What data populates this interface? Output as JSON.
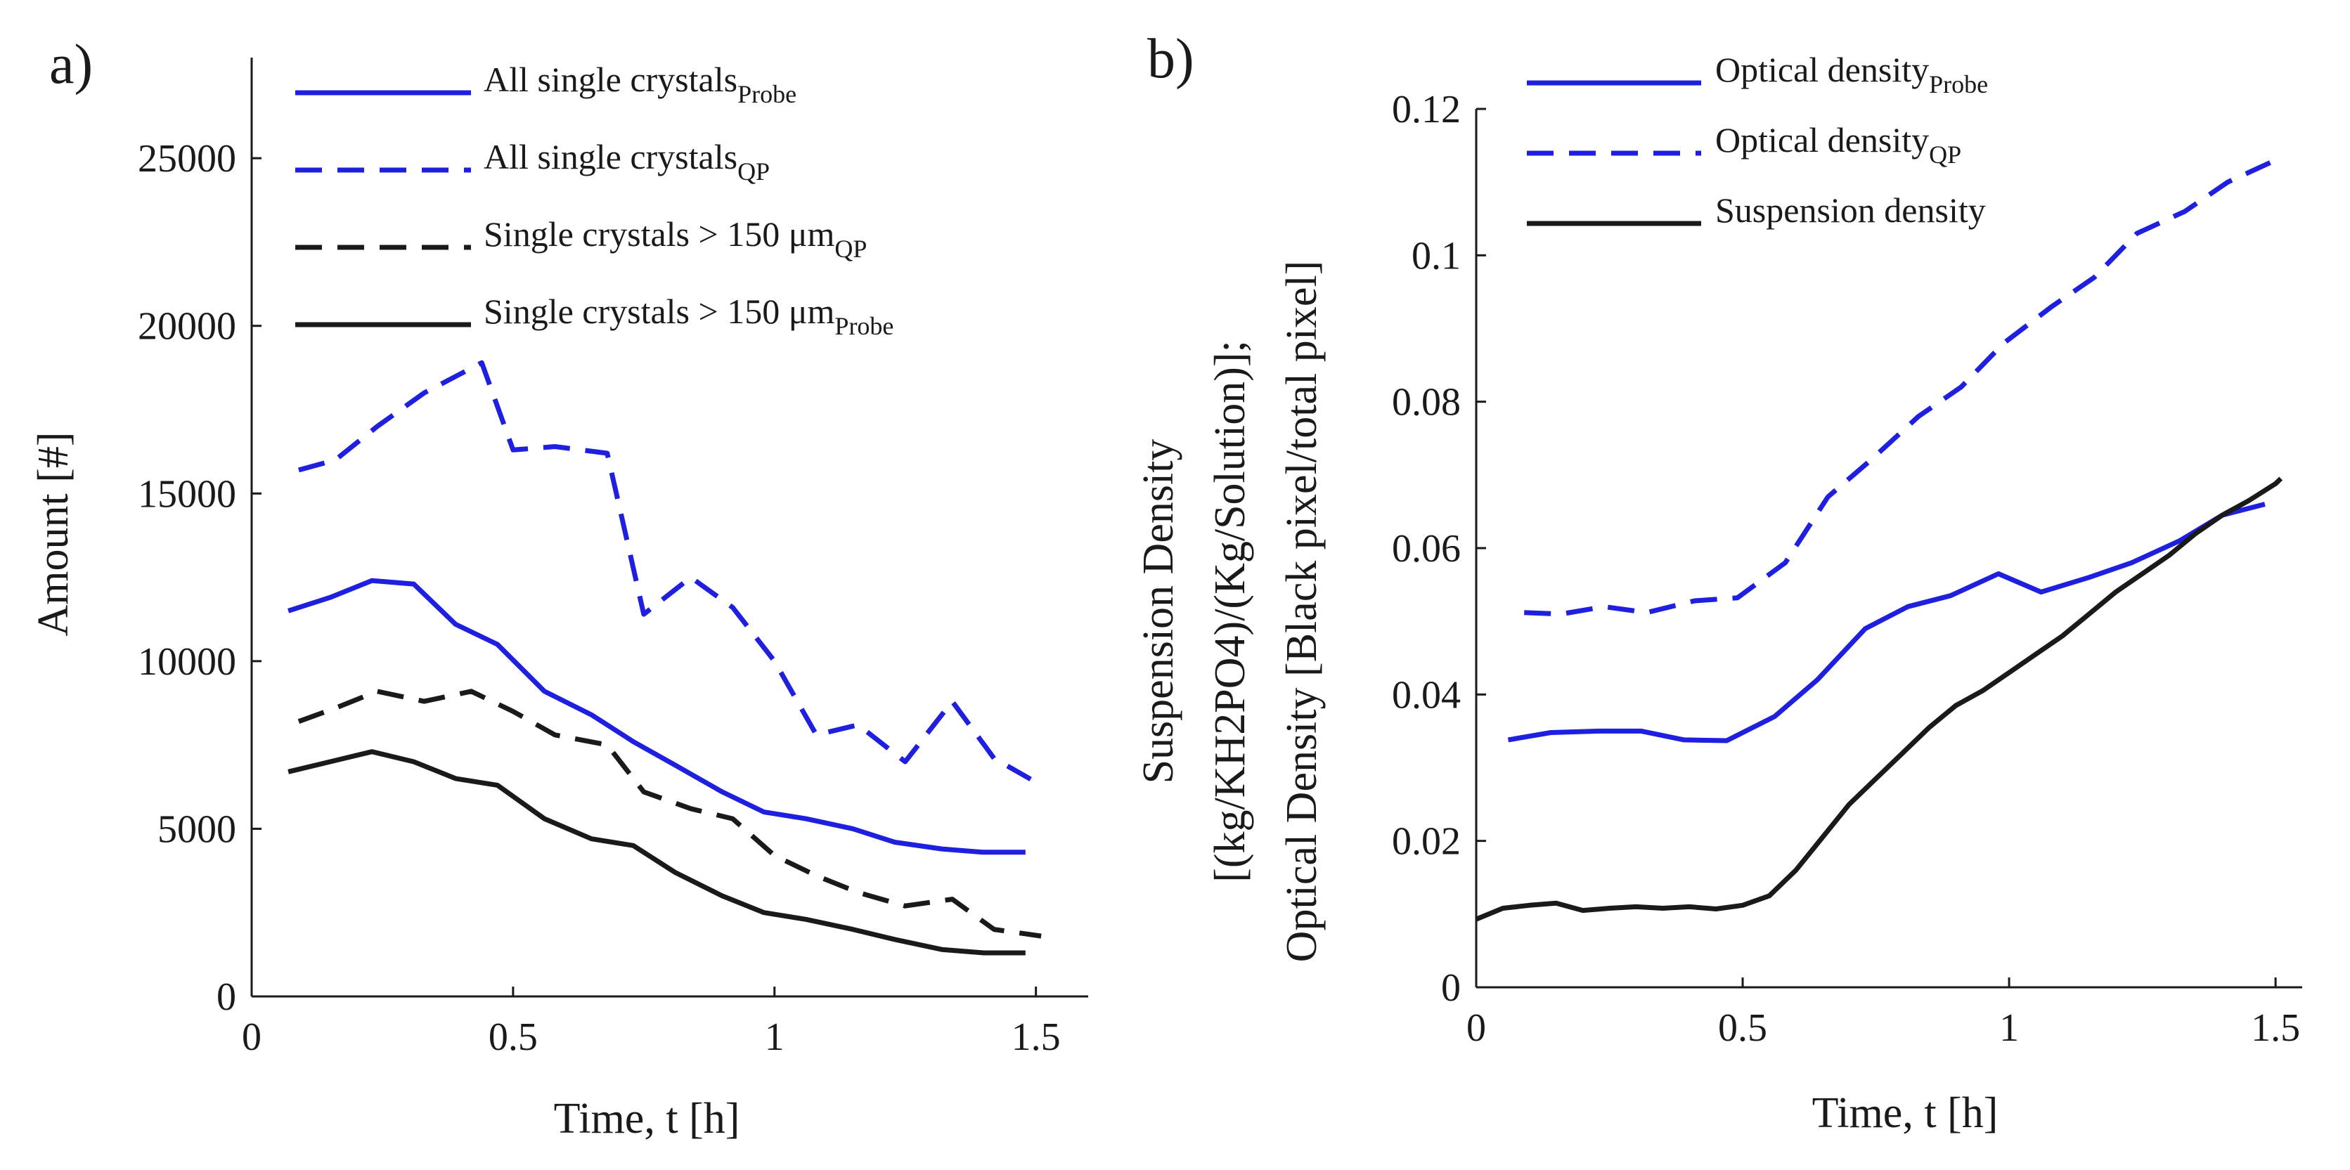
{
  "chart_data": [
    {
      "panel_label": "a)",
      "type": "line",
      "xlabel": "Time, t [h]",
      "ylabel": "Amount [#]",
      "xlim": [
        0,
        1.6
      ],
      "ylim": [
        0,
        28000
      ],
      "xticks": [
        0,
        0.5,
        1,
        1.5
      ],
      "xtick_labels": [
        "0",
        "0.5",
        "1",
        "1.5"
      ],
      "yticks": [
        0,
        5000,
        10000,
        15000,
        20000,
        25000
      ],
      "ytick_labels": [
        "0",
        "5000",
        "10000",
        "15000",
        "20000",
        "25000"
      ],
      "legend_position": "top",
      "series": [
        {
          "name": "All single crystals",
          "label": "All single crystals",
          "subscript": "Probe",
          "color": "#1f1fe0",
          "style": "solid",
          "x": [
            0.07,
            0.15,
            0.23,
            0.31,
            0.39,
            0.47,
            0.56,
            0.65,
            0.73,
            0.81,
            0.9,
            0.98,
            1.06,
            1.15,
            1.23,
            1.32,
            1.4,
            1.48
          ],
          "y": [
            11500,
            11900,
            12400,
            12300,
            11100,
            10500,
            9100,
            8400,
            7600,
            6900,
            6100,
            5500,
            5300,
            5000,
            4600,
            4400,
            4300,
            4300
          ]
        },
        {
          "name": "All single crystals",
          "label": "All single crystals",
          "subscript": "QP",
          "color": "#1f1fe0",
          "style": "dashed",
          "x": [
            0.09,
            0.16,
            0.24,
            0.33,
            0.44,
            0.5,
            0.58,
            0.68,
            0.75,
            0.84,
            0.92,
            1.0,
            1.08,
            1.16,
            1.25,
            1.34,
            1.42,
            1.51
          ],
          "y": [
            15700,
            16000,
            17000,
            18000,
            18900,
            16300,
            16400,
            16200,
            11400,
            12500,
            11600,
            10000,
            7800,
            8100,
            7000,
            8800,
            7100,
            6300
          ]
        },
        {
          "name": "Single crystals > 150 μm",
          "label": "Single crystals > 150 μm",
          "subscript": "QP",
          "color": "#1a1a1a",
          "style": "dashed",
          "x": [
            0.09,
            0.16,
            0.24,
            0.33,
            0.42,
            0.5,
            0.58,
            0.68,
            0.75,
            0.84,
            0.92,
            1.0,
            1.08,
            1.16,
            1.25,
            1.34,
            1.42,
            1.51
          ],
          "y": [
            8200,
            8600,
            9100,
            8800,
            9100,
            8500,
            7800,
            7500,
            6100,
            5600,
            5300,
            4200,
            3600,
            3100,
            2700,
            2900,
            2000,
            1800
          ]
        },
        {
          "name": "Single crystals > 150 μm",
          "label": "Single crystals > 150 μm",
          "subscript": "Probe",
          "color": "#1a1a1a",
          "style": "solid",
          "x": [
            0.07,
            0.15,
            0.23,
            0.31,
            0.39,
            0.47,
            0.56,
            0.65,
            0.73,
            0.81,
            0.9,
            0.98,
            1.06,
            1.15,
            1.23,
            1.32,
            1.4,
            1.48
          ],
          "y": [
            6700,
            7000,
            7300,
            7000,
            6500,
            6300,
            5300,
            4700,
            4500,
            3700,
            3000,
            2500,
            2300,
            2000,
            1700,
            1400,
            1300,
            1300
          ]
        }
      ]
    },
    {
      "panel_label": "b)",
      "type": "line",
      "xlabel": "Time, t [h]",
      "ylabel_lines": [
        "Suspension Density",
        "[(kg/KH2PO4)/(Kg/Solution)];",
        "Optical Density [Black pixel/total pixel]"
      ],
      "xlim": [
        0,
        1.55
      ],
      "ylim": [
        0,
        0.12
      ],
      "xticks": [
        0,
        0.5,
        1,
        1.5
      ],
      "xtick_labels": [
        "0",
        "0.5",
        "1",
        "1.5"
      ],
      "yticks": [
        0,
        0.02,
        0.04,
        0.06,
        0.08,
        0.1,
        0.12
      ],
      "ytick_labels": [
        "0",
        "0.02",
        "0.04",
        "0.06",
        "0.08",
        "0.1",
        "0.12"
      ],
      "legend_position": "top-left",
      "series": [
        {
          "name": "Optical density",
          "label": "Optical density",
          "subscript": "Probe",
          "color": "#1f1fe0",
          "style": "solid",
          "x": [
            0.06,
            0.14,
            0.23,
            0.31,
            0.39,
            0.47,
            0.56,
            0.64,
            0.73,
            0.81,
            0.89,
            0.98,
            1.06,
            1.15,
            1.23,
            1.32,
            1.4,
            1.48
          ],
          "y": [
            0.0338,
            0.0348,
            0.035,
            0.035,
            0.0338,
            0.0337,
            0.037,
            0.042,
            0.049,
            0.052,
            0.0535,
            0.0565,
            0.054,
            0.056,
            0.058,
            0.061,
            0.0645,
            0.066
          ]
        },
        {
          "name": "Optical density",
          "label": "Optical density",
          "subscript": "QP",
          "color": "#1f1fe0",
          "style": "dashed",
          "x": [
            0.09,
            0.16,
            0.24,
            0.32,
            0.41,
            0.49,
            0.58,
            0.66,
            0.74,
            0.83,
            0.91,
            0.99,
            1.08,
            1.16,
            1.24,
            1.33,
            1.41,
            1.5
          ],
          "y": [
            0.0512,
            0.051,
            0.052,
            0.0512,
            0.0528,
            0.0532,
            0.058,
            0.067,
            0.072,
            0.078,
            0.082,
            0.088,
            0.093,
            0.097,
            0.103,
            0.106,
            0.11,
            0.113
          ]
        },
        {
          "name": "Suspension density",
          "label": "Suspension density",
          "subscript": "",
          "color": "#1a1a1a",
          "style": "solid",
          "x": [
            0.0,
            0.05,
            0.1,
            0.15,
            0.2,
            0.25,
            0.3,
            0.35,
            0.4,
            0.45,
            0.5,
            0.55,
            0.6,
            0.65,
            0.7,
            0.75,
            0.8,
            0.85,
            0.9,
            0.95,
            1.0,
            1.05,
            1.1,
            1.15,
            1.2,
            1.25,
            1.3,
            1.35,
            1.4,
            1.45,
            1.5,
            1.51
          ],
          "y": [
            0.0093,
            0.0108,
            0.0112,
            0.0115,
            0.0105,
            0.0108,
            0.011,
            0.0108,
            0.011,
            0.0107,
            0.0112,
            0.0125,
            0.016,
            0.0205,
            0.025,
            0.0285,
            0.032,
            0.0355,
            0.0385,
            0.0405,
            0.043,
            0.0455,
            0.048,
            0.051,
            0.054,
            0.0565,
            0.059,
            0.062,
            0.0645,
            0.0665,
            0.0688,
            0.0695
          ]
        }
      ]
    }
  ]
}
